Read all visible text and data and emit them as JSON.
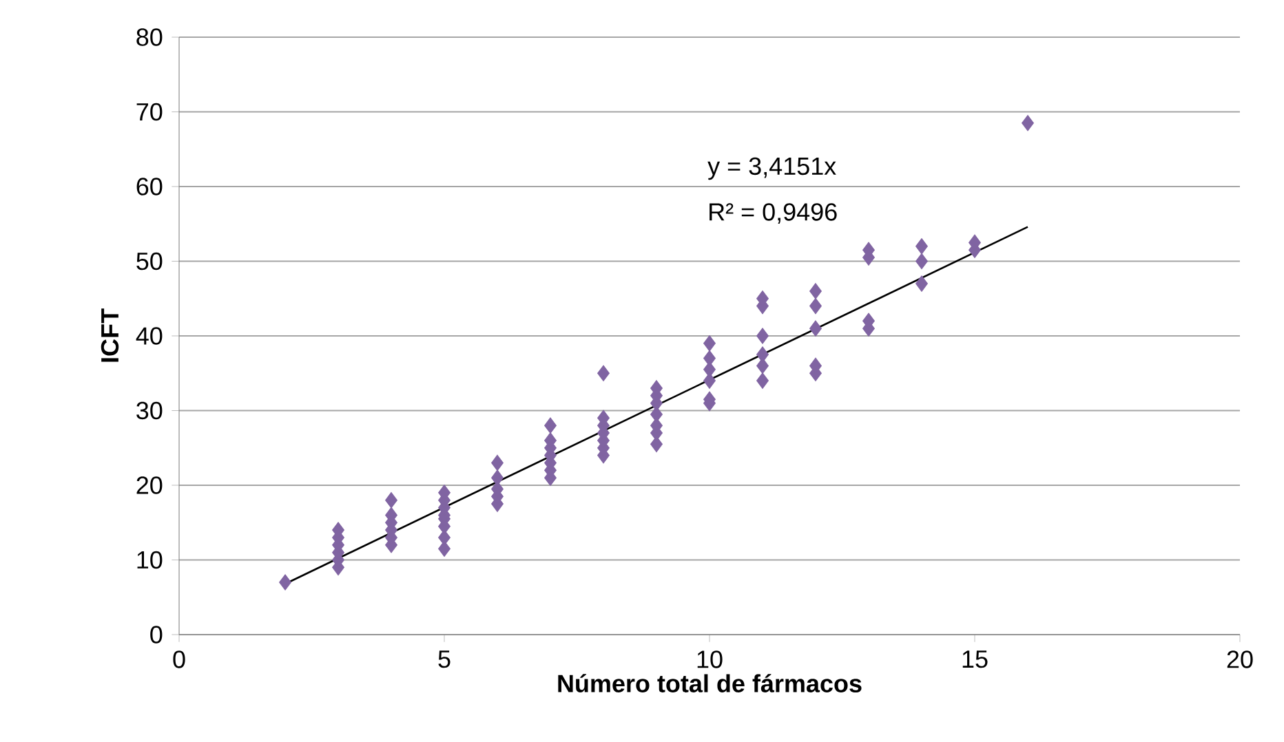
{
  "chart_data": {
    "type": "scatter",
    "xlabel": "Número total de fármacos",
    "ylabel": "ICFT",
    "xlim": [
      0,
      20
    ],
    "xticks": [
      0,
      5,
      10,
      15,
      20
    ],
    "ylim": [
      0,
      80
    ],
    "yticks": [
      0,
      10,
      20,
      30,
      40,
      50,
      60,
      70,
      80
    ],
    "grid": "y",
    "marker": "diamond",
    "series": [
      {
        "color": "#8064a2",
        "x": [
          2,
          3,
          3,
          3,
          3,
          3,
          3,
          4,
          4,
          4,
          4,
          4,
          4,
          5,
          5,
          5,
          5,
          5,
          5,
          5,
          5,
          6,
          6,
          6,
          6,
          6,
          7,
          7,
          7,
          7,
          7,
          7,
          7,
          8,
          8,
          8,
          8,
          8,
          8,
          8,
          9,
          9,
          9,
          9,
          9,
          9,
          9,
          10,
          10,
          10,
          10,
          10,
          10,
          11,
          11,
          11,
          11,
          11,
          11,
          12,
          12,
          12,
          12,
          12,
          13,
          13,
          13,
          13,
          14,
          14,
          14,
          15,
          15,
          16
        ],
        "values": [
          7,
          9,
          10,
          11,
          12,
          13,
          14,
          12,
          13,
          14,
          15,
          16,
          18,
          11.5,
          13,
          14.5,
          15.5,
          16,
          17,
          18,
          19,
          17.5,
          18.5,
          19.5,
          21,
          23,
          21,
          22,
          23,
          24,
          25,
          26,
          28,
          24,
          25,
          26,
          27,
          28,
          29,
          35,
          25.5,
          27,
          28,
          29.5,
          31,
          32,
          33,
          31,
          31.5,
          34,
          35.5,
          37,
          39,
          34,
          36,
          37.5,
          40,
          44,
          45,
          35,
          36,
          41,
          44,
          46,
          41,
          42,
          50.5,
          51.5,
          47,
          50,
          52,
          51.5,
          52.5,
          68.5
        ]
      },
      {
        "type": "line",
        "color": "#000000",
        "marker": "none",
        "x": [
          2,
          16
        ],
        "values": [
          6.8,
          54.6
        ]
      }
    ],
    "annotations": [
      "y = 3,4151x",
      "R² = 0,9496"
    ]
  }
}
